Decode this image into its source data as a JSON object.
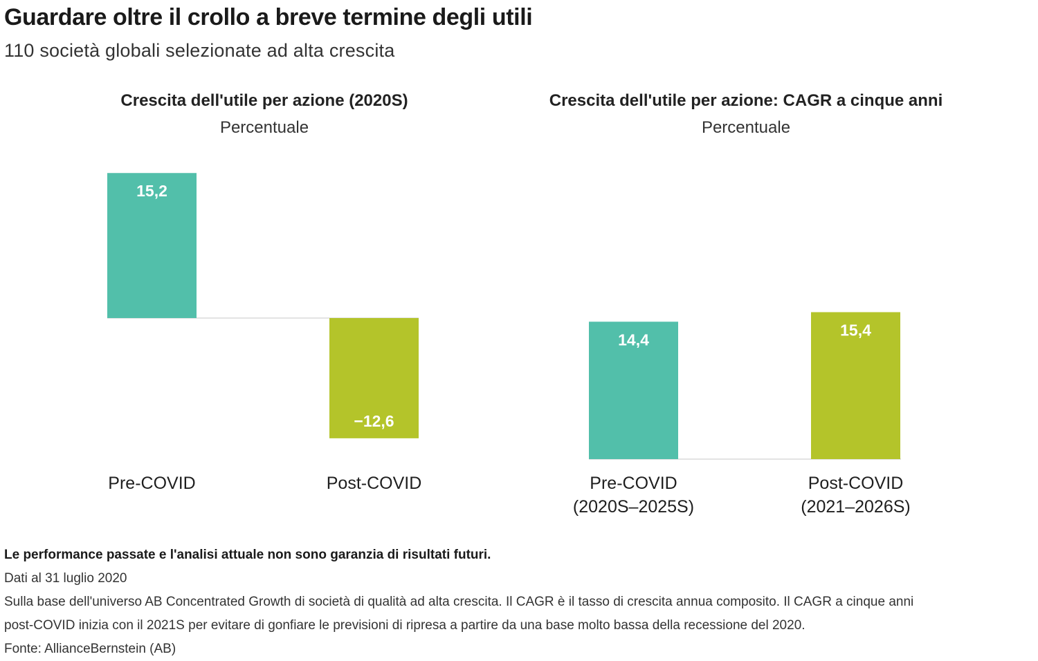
{
  "header": {
    "title": "Guardare oltre il crollo a breve termine degli utili",
    "subtitle": "110 società globali selezionate ad alta crescita"
  },
  "colors": {
    "pre": "#52bfaa",
    "post": "#b4c42a",
    "baseline": "#e3e3e3"
  },
  "chart_data": [
    {
      "type": "bar",
      "title": "Crescita dell'utile per azione (2020S)",
      "subtitle": "Percentuale",
      "categories": [
        [
          "Pre-COVID"
        ],
        [
          "Post-COVID"
        ]
      ],
      "values": [
        15.2,
        -12.6
      ],
      "value_labels": [
        "15,2",
        "−12,6"
      ],
      "ylim": [
        -12.6,
        15.4
      ]
    },
    {
      "type": "bar",
      "title": "Crescita dell'utile per azione: CAGR a cinque anni",
      "subtitle": "Percentuale",
      "categories": [
        [
          "Pre-COVID",
          "(2020S–2025S)"
        ],
        [
          "Post-COVID",
          "(2021–2026S)"
        ]
      ],
      "values": [
        14.4,
        15.4
      ],
      "value_labels": [
        "14,4",
        "15,4"
      ],
      "ylim": [
        0,
        15.4
      ]
    }
  ],
  "footer": {
    "disclaimer": "Le performance passate e l'analisi attuale non sono garanzia di risultati futuri.",
    "date": "Dati al 31 luglio 2020",
    "note_line1": "Sulla base dell'universo AB Concentrated Growth di società di qualità ad alta crescita. Il CAGR è il tasso di crescita annua composito. Il CAGR a cinque anni",
    "note_line2": "post-COVID inizia con il 2021S per evitare di gonfiare le previsioni di ripresa a partire da una base molto bassa della recessione del 2020.",
    "source": "Fonte: AllianceBernstein (AB)"
  }
}
